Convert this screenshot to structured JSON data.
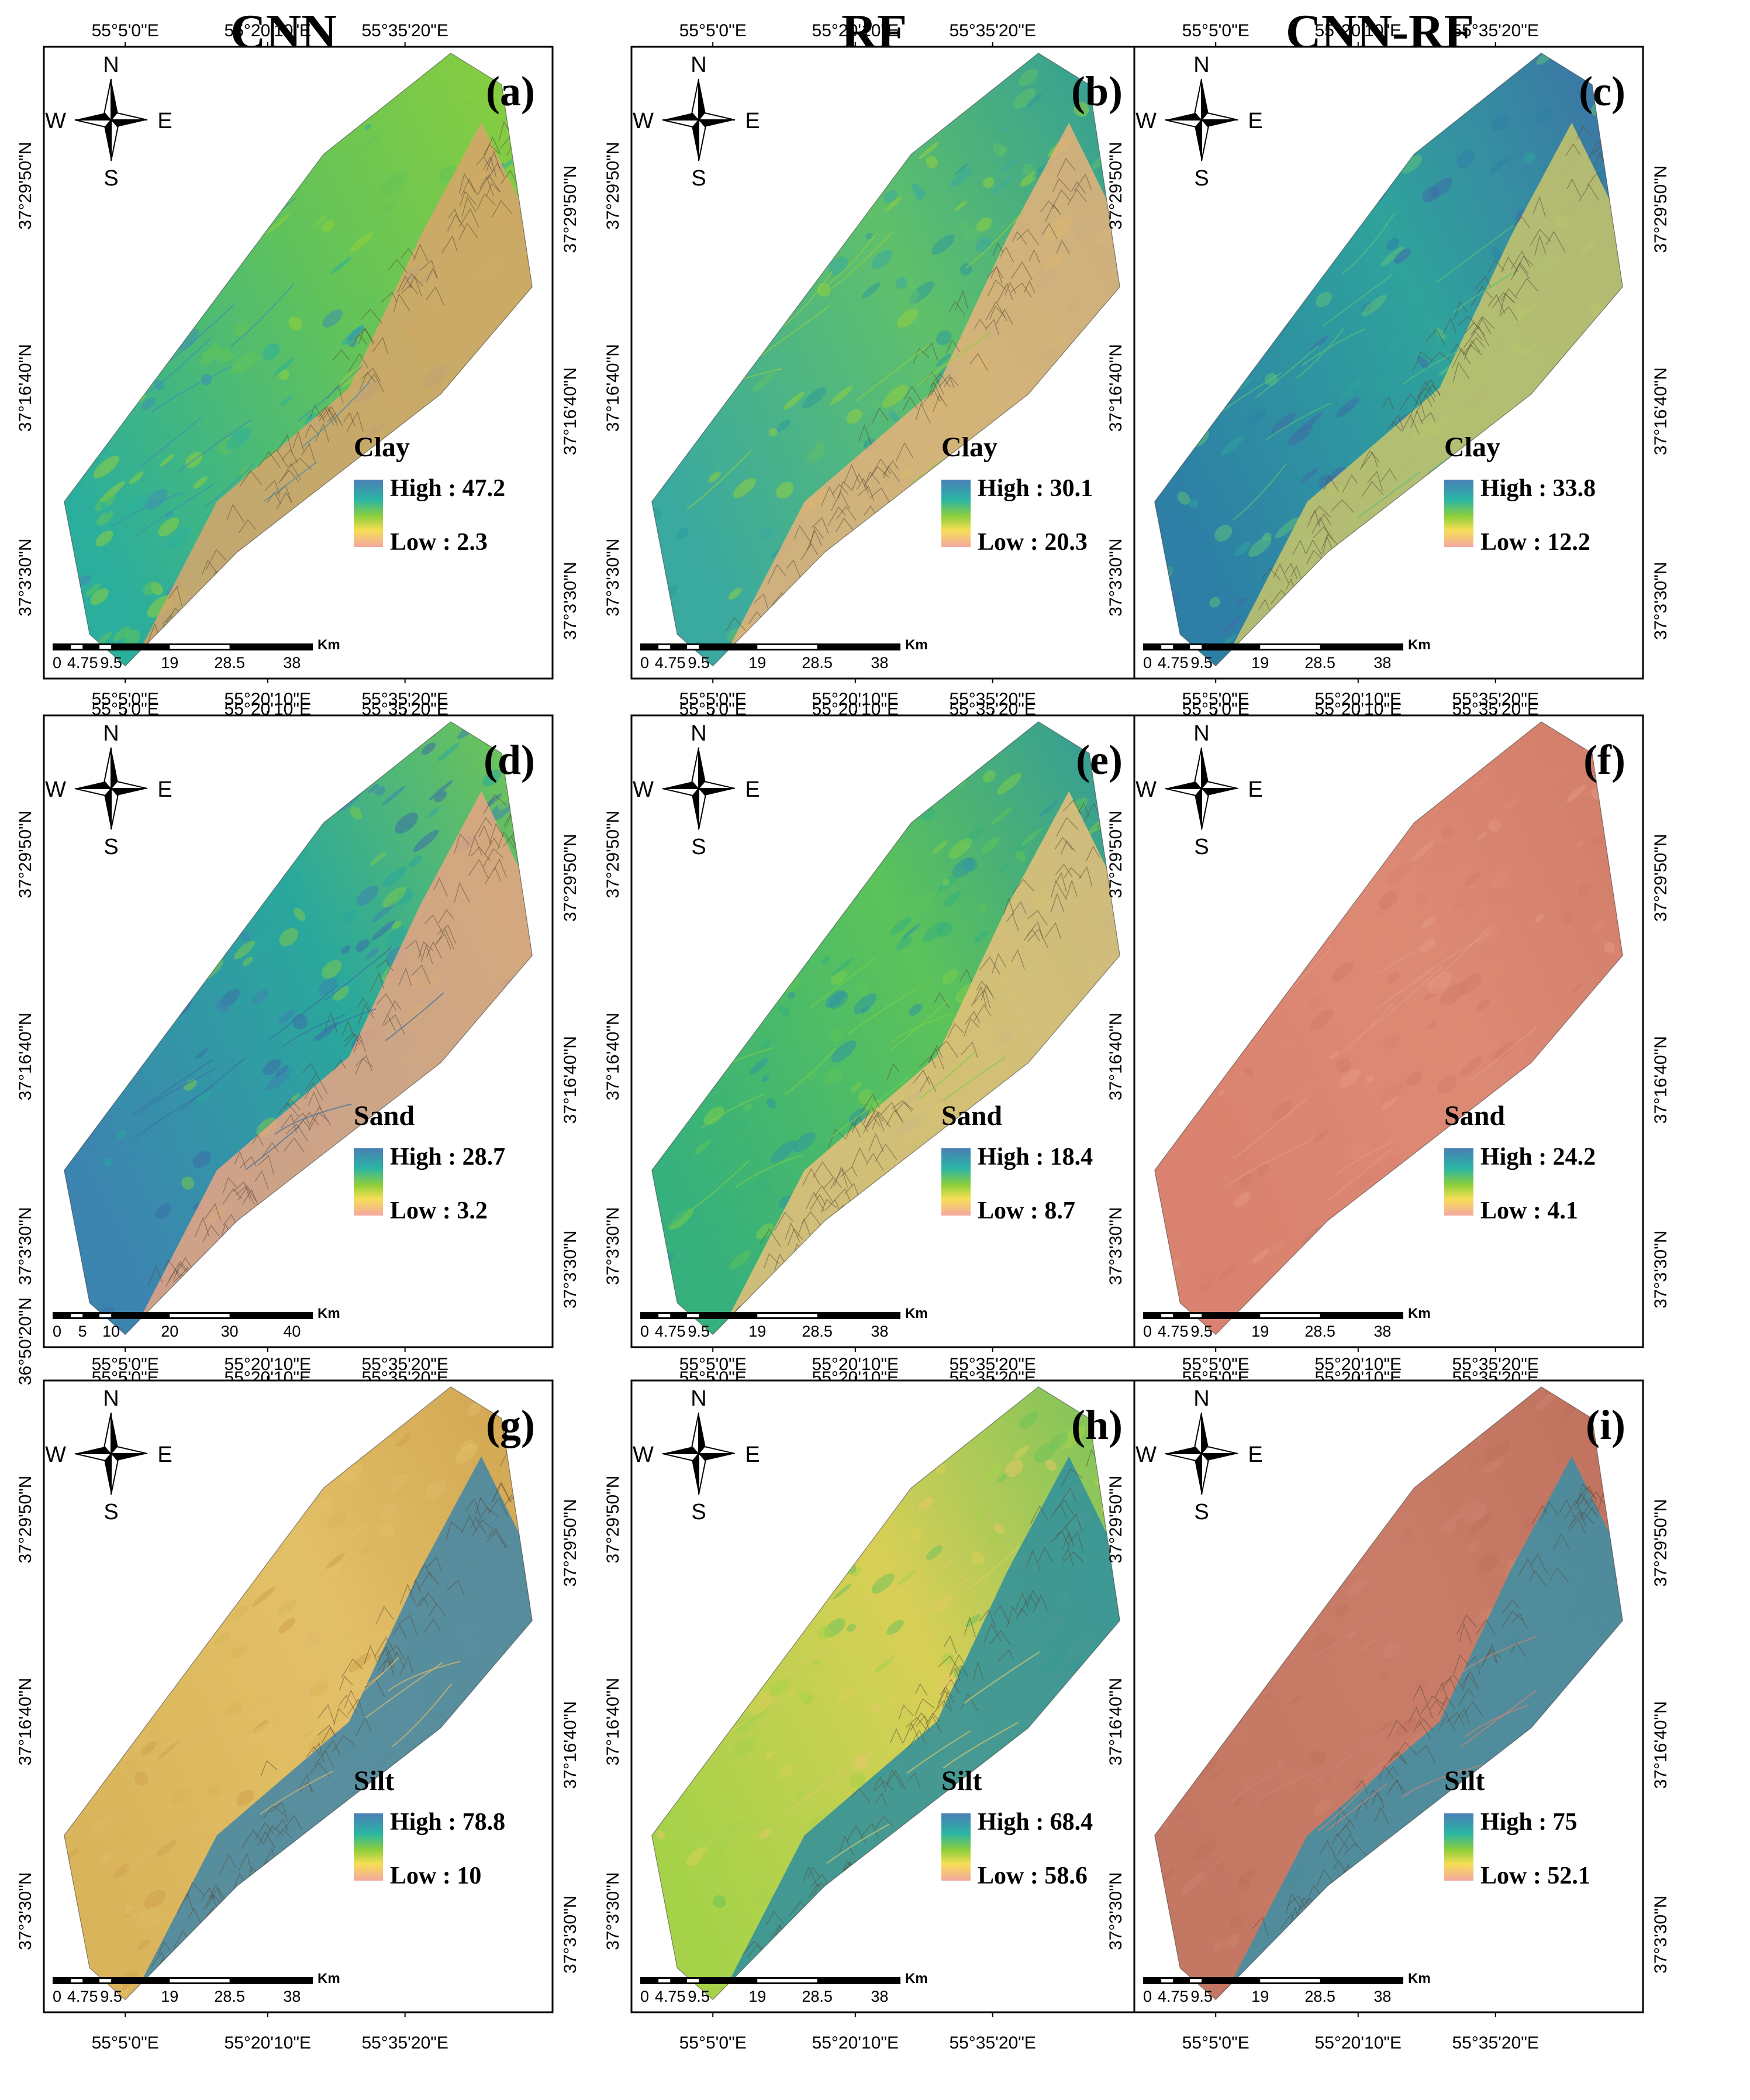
{
  "columns": [
    "CNN",
    "RF",
    "CNN-RF"
  ],
  "grid": {
    "lon_labels": [
      "55°5'0\"E",
      "55°20'10\"E",
      "55°35'20\"E"
    ],
    "lat_labels": [
      "37°29'50\"N",
      "37°16'40\"N",
      "37°3'30\"N"
    ],
    "lat_label_extra": "36°50'20\"N",
    "north_arrow_letters": {
      "n": "N",
      "s": "S",
      "w": "W",
      "e": "E"
    },
    "scale_unit": "Km",
    "scale_ticks_default": [
      "0",
      "4.75",
      "9.5",
      "19",
      "28.5",
      "38"
    ],
    "scale_ticks_alt": [
      "0",
      "5",
      "10",
      "20",
      "30",
      "40"
    ]
  },
  "panels": [
    {
      "letter": "(a)",
      "variable": "Clay",
      "high": "High : 47.2",
      "low": "Low : 2.3",
      "style": "clay-cnn"
    },
    {
      "letter": "(b)",
      "variable": "Clay",
      "high": "High : 30.1",
      "low": "Low : 20.3",
      "style": "clay-rf"
    },
    {
      "letter": "(c)",
      "variable": "Clay",
      "high": "High : 33.8",
      "low": "Low : 12.2",
      "style": "clay-cnnrf"
    },
    {
      "letter": "(d)",
      "variable": "Sand",
      "high": "High : 28.7",
      "low": "Low : 3.2",
      "style": "sand-cnn"
    },
    {
      "letter": "(e)",
      "variable": "Sand",
      "high": "High : 18.4",
      "low": "Low : 8.7",
      "style": "sand-rf"
    },
    {
      "letter": "(f)",
      "variable": "Sand",
      "high": "High : 24.2",
      "low": "Low : 4.1",
      "style": "sand-cnnrf"
    },
    {
      "letter": "(g)",
      "variable": "Silt",
      "high": "High : 78.8",
      "low": "Low : 10",
      "style": "silt-cnn"
    },
    {
      "letter": "(h)",
      "variable": "Silt",
      "high": "High : 68.4",
      "low": "Low : 58.6",
      "style": "silt-rf"
    },
    {
      "letter": "(i)",
      "variable": "Silt",
      "high": "High : 75",
      "low": "Low : 52.1",
      "style": "silt-cnnrf"
    }
  ],
  "colors": {
    "legend_high": "#4a7fb6",
    "legend_mid1": "#2ab5a4",
    "legend_mid2": "#8fcf3a",
    "legend_mid3": "#f6de55",
    "legend_low": "#f4a8a0"
  }
}
